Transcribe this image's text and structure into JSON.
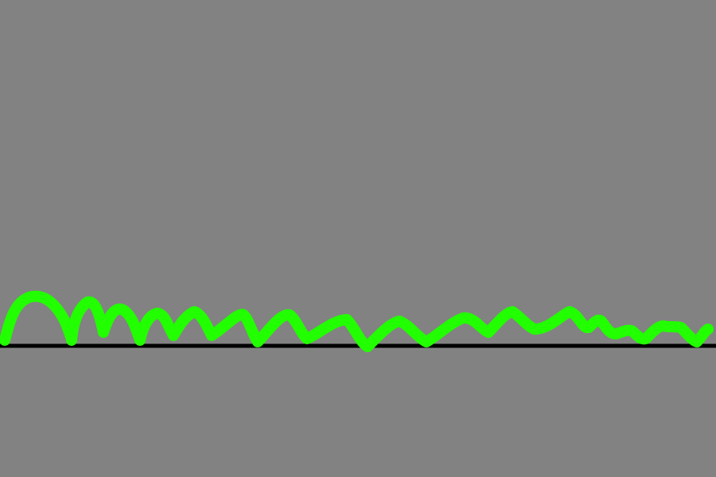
{
  "colors": {
    "background": "#828282",
    "ground": "#000000",
    "squiggle": "#22ff00"
  },
  "shapes": {
    "ground_line": "horizontal-line",
    "squiggle": "freehand-wavy-stroke"
  }
}
